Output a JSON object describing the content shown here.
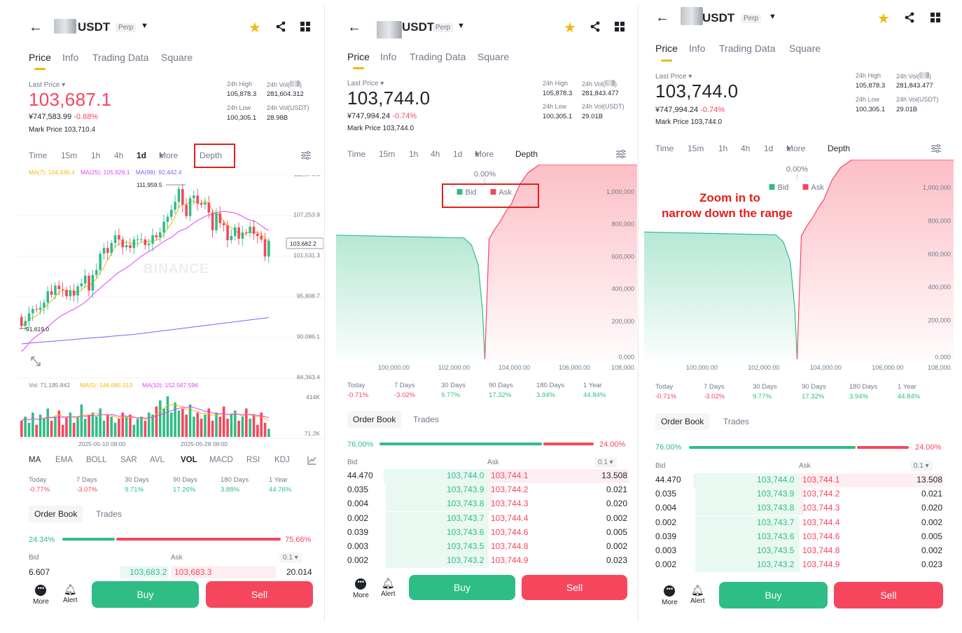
{
  "common": {
    "symbol": "USDT",
    "perp": "Perp",
    "tabs": [
      "Price",
      "Info",
      "Trading Data",
      "Square"
    ],
    "last_price_label": "Last Price",
    "high_label": "24h High",
    "low_label": "24h Low",
    "vol_base_label": "24h Vol(",
    "vol_usdt_label": "24h Vol(USDT)",
    "mark_label": "Mark Price",
    "timeframes": [
      "Time",
      "15m",
      "1h",
      "4h",
      "1d",
      "More",
      "Depth"
    ],
    "perf_labels": [
      "Today",
      "7 Days",
      "30 Days",
      "90 Days",
      "180 Days",
      "1 Year"
    ],
    "orderbook_tab": "Order Book",
    "trades_tab": "Trades",
    "bid_label": "Bid",
    "ask_label": "Ask",
    "step": "0.1",
    "buy": "Buy",
    "sell": "Sell",
    "nav_more": "More",
    "nav_alert": "Alert",
    "icons": [
      "back-arrow-icon",
      "star-icon",
      "share-icon",
      "grid-icon",
      "chevron-down-icon",
      "settings-sliders-icon",
      "fullscreen-icon",
      "more-dots-icon",
      "bell-icon"
    ]
  },
  "panel1": {
    "price": "103,687.1",
    "cny": "¥747,583.99",
    "change": "-0.88%",
    "mark": "103,710.4",
    "high": "105,878.3",
    "vol_base": "281,604.312",
    "low": "100,305.1",
    "vol_usdt": "28.98B",
    "ma7": "MA(7): 104,436.4",
    "ma25": "MA(25): 105,929.1",
    "ma99": "MA(99): 92,442.4",
    "y_axis": [
      "112,976.6",
      "107,253.9",
      "101,531.3",
      "95,808.7",
      "90,086.1",
      "84,363.4"
    ],
    "current_tag": "103,682.2",
    "high_marker": "111,959.5",
    "low_marker": "91,619.0",
    "watermark": "BINANCE",
    "vol_line": "Vol: 71,185.842",
    "vol_ma5": "MA(5): 146,685.513",
    "vol_ma10": "MA(10): 152,567.596",
    "vol_axis": [
      "414K",
      "71.2K"
    ],
    "dates": [
      "2025-05-10 08:00",
      "2025-05-28 08:00"
    ],
    "indicators": [
      "MA",
      "EMA",
      "BOLL",
      "SAR",
      "AVL",
      "VOL",
      "MACD",
      "RSI",
      "KDJ"
    ],
    "perf_values": [
      "-0.77%",
      "-3.07%",
      "9.71%",
      "17.26%",
      "3.88%",
      "44.76%"
    ],
    "bid_pct": "24.34%",
    "ask_pct": "75.66%",
    "bid_frac": 0.2434,
    "ob_row": {
      "bid_qty": "6.607",
      "bid_price": "103,683.2",
      "ask_price": "103,683.3",
      "ask_qty": "20.014"
    }
  },
  "panel2": {
    "price": "103,744.0",
    "cny": "¥747,994.24",
    "change": "-0.74%",
    "mark": "103,744.0",
    "high": "105,878.3",
    "vol_base": "281,843.477",
    "low": "100,305.1",
    "vol_usdt": "29.01B",
    "perf_values": [
      "-0.71%",
      "-3.02%",
      "9.77%",
      "17.32%",
      "3.94%",
      "44.84%"
    ],
    "bid_pct": "76.00%",
    "ask_pct": "24.00%",
    "bid_frac": 0.76
  },
  "panel3": {
    "annotation_line1": "Zoom in to",
    "annotation_line2": "narrow down the range"
  },
  "depth": {
    "center_pct": "0.00%",
    "legend_bid": "Bid",
    "legend_ask": "Ask",
    "y_axis": [
      "1,000,000",
      "800,000",
      "600,000",
      "400,000",
      "200,000",
      "0.000"
    ],
    "x_axis": [
      "100,000.00",
      "102,000.00",
      "104,000.00",
      "106,000.00",
      "108,000."
    ]
  },
  "orderbook": [
    {
      "bid_qty": "44.470",
      "bid_price": "103,744.0",
      "ask_price": "103,744.1",
      "ask_qty": "13.508",
      "bid_depth": 1.0,
      "ask_depth": 1.0
    },
    {
      "bid_qty": "0.035",
      "bid_price": "103,743.9",
      "ask_price": "103,744.2",
      "ask_qty": "0.021",
      "bid_depth": 0.98,
      "ask_depth": 0.03
    },
    {
      "bid_qty": "0.004",
      "bid_price": "103,743.8",
      "ask_price": "103,744.3",
      "ask_qty": "0.020",
      "bid_depth": 0.98,
      "ask_depth": 0.03
    },
    {
      "bid_qty": "0.002",
      "bid_price": "103,743.7",
      "ask_price": "103,744.4",
      "ask_qty": "0.002",
      "bid_depth": 0.98,
      "ask_depth": 0.0
    },
    {
      "bid_qty": "0.039",
      "bid_price": "103,743.6",
      "ask_price": "103,744.6",
      "ask_qty": "0.005",
      "bid_depth": 0.98,
      "ask_depth": 0.0
    },
    {
      "bid_qty": "0.003",
      "bid_price": "103,743.5",
      "ask_price": "103,744.8",
      "ask_qty": "0.002",
      "bid_depth": 0.98,
      "ask_depth": 0.0
    },
    {
      "bid_qty": "0.002",
      "bid_price": "103,743.2",
      "ask_price": "103,744.9",
      "ask_qty": "0.023",
      "bid_depth": 0.98,
      "ask_depth": 0.0
    }
  ],
  "colors": {
    "up": "#2ebd85",
    "down": "#f6465d",
    "accent": "#f0b90b",
    "ma7": "#f0b90b",
    "ma25": "#e040fb",
    "ma99": "#7b61ff",
    "highlight": "#e0201c"
  }
}
